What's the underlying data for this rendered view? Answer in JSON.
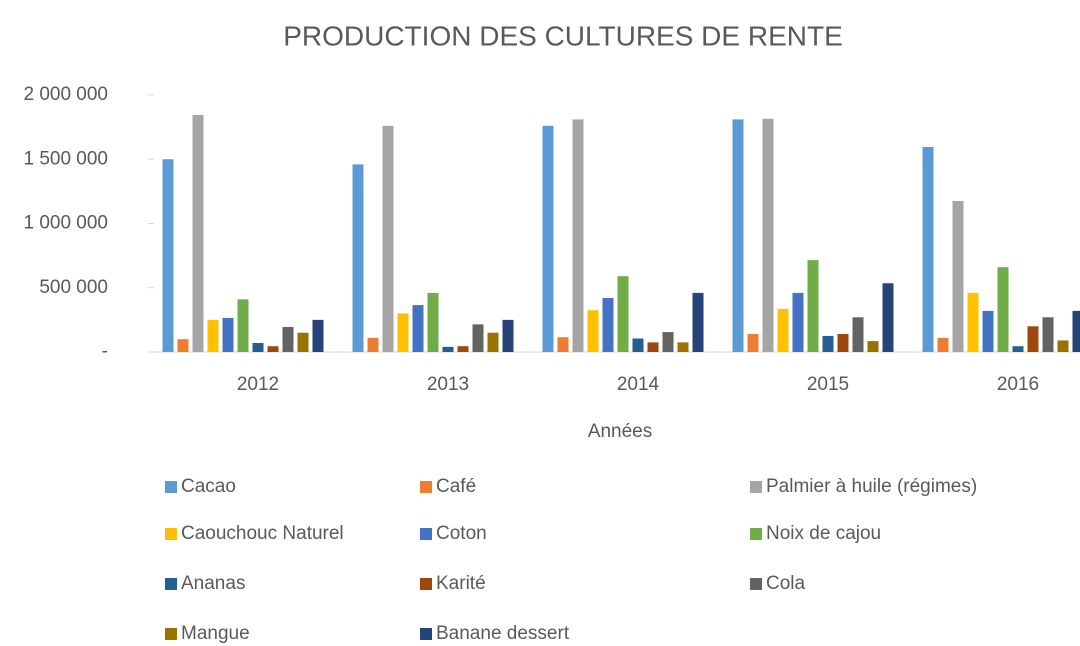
{
  "chart_data": {
    "type": "bar",
    "title": "PRODUCTION DES CULTURES DE RENTE",
    "x_label": "Années",
    "categories": [
      "2012",
      "2013",
      "2014",
      "2015",
      "2016"
    ],
    "ylim": [
      0,
      2000000
    ],
    "yticks": [
      {
        "value": 0,
        "label": "-"
      },
      {
        "value": 500000,
        "label": "500 000"
      },
      {
        "value": 1000000,
        "label": "1 000 000"
      },
      {
        "value": 1500000,
        "label": "1 500 000"
      },
      {
        "value": 2000000,
        "label": "2 000 000"
      }
    ],
    "series": [
      {
        "name": "Cacao",
        "color": "#5b9bd5",
        "values": [
          1500000,
          1460000,
          1760000,
          1810000,
          1595000
        ]
      },
      {
        "name": "Café",
        "color": "#ed7d31",
        "values": [
          100000,
          110000,
          115000,
          140000,
          110000
        ]
      },
      {
        "name": "Palmier à huile (régimes)",
        "color": "#a5a5a5",
        "values": [
          1845000,
          1760000,
          1810000,
          1815000,
          1175000
        ]
      },
      {
        "name": "Caouchouc Naturel",
        "color": "#ffc000",
        "values": [
          250000,
          300000,
          325000,
          335000,
          460000
        ]
      },
      {
        "name": "Coton",
        "color": "#4472c4",
        "values": [
          265000,
          365000,
          420000,
          460000,
          320000
        ]
      },
      {
        "name": "Noix de cajou",
        "color": "#70ad47",
        "values": [
          410000,
          460000,
          590000,
          715000,
          660000
        ]
      },
      {
        "name": "Ananas",
        "color": "#255e91",
        "values": [
          70000,
          40000,
          105000,
          125000,
          45000
        ]
      },
      {
        "name": "Karité",
        "color": "#9e480e",
        "values": [
          45000,
          45000,
          75000,
          140000,
          200000
        ]
      },
      {
        "name": "Cola",
        "color": "#636363",
        "values": [
          195000,
          215000,
          155000,
          270000,
          270000
        ]
      },
      {
        "name": "Mangue",
        "color": "#997300",
        "values": [
          150000,
          150000,
          75000,
          85000,
          90000
        ]
      },
      {
        "name": "Banane dessert",
        "color": "#264478",
        "values": [
          250000,
          250000,
          460000,
          535000,
          320000
        ]
      }
    ]
  }
}
